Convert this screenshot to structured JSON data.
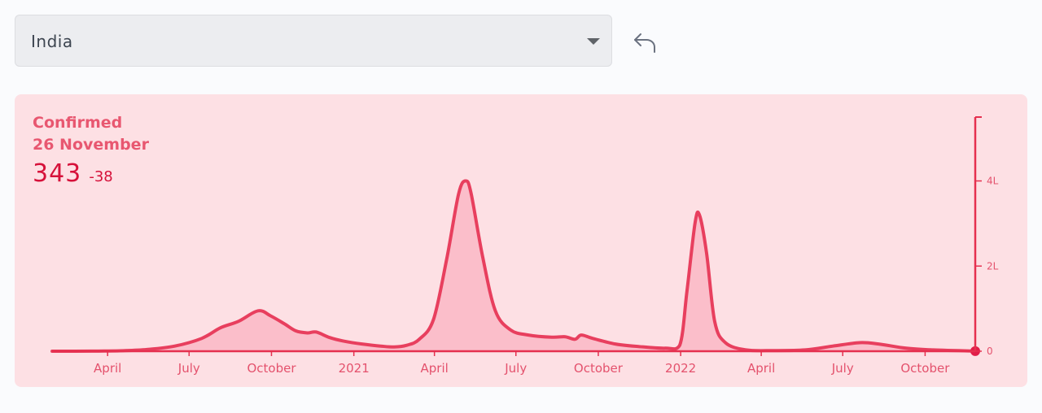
{
  "region_select": {
    "value": "India",
    "icon": "caret-down-icon"
  },
  "back_button": {
    "icon": "undo-arrow-icon"
  },
  "stats": {
    "label": "Confirmed",
    "date": "26 November",
    "value": "343",
    "delta": "-38"
  },
  "colors": {
    "card_bg": "#fde0e4",
    "line": "#e83f5e",
    "fill": "#f9b3c1",
    "axis": "#e5304f"
  },
  "chart_data": {
    "type": "area",
    "title": "",
    "xlabel": "",
    "ylabel": "",
    "x_range": [
      "2020-01-30",
      "2022-11-26"
    ],
    "ylim": [
      0,
      550000
    ],
    "yticks": [
      {
        "value": 0,
        "label": "0"
      },
      {
        "value": 200000,
        "label": "2L"
      },
      {
        "value": 400000,
        "label": "4L"
      }
    ],
    "xticks": [
      {
        "date": "2020-04-01",
        "label": "April"
      },
      {
        "date": "2020-07-01",
        "label": "July"
      },
      {
        "date": "2020-10-01",
        "label": "October"
      },
      {
        "date": "2021-01-01",
        "label": "2021"
      },
      {
        "date": "2021-04-01",
        "label": "April"
      },
      {
        "date": "2021-07-01",
        "label": "July"
      },
      {
        "date": "2021-10-01",
        "label": "October"
      },
      {
        "date": "2022-01-01",
        "label": "2022"
      },
      {
        "date": "2022-04-01",
        "label": "April"
      },
      {
        "date": "2022-07-01",
        "label": "July"
      },
      {
        "date": "2022-10-01",
        "label": "October"
      }
    ],
    "grid": false,
    "legend": "none",
    "series": [
      {
        "points": [
          [
            "2020-01-30",
            0
          ],
          [
            "2020-03-15",
            200
          ],
          [
            "2020-04-15",
            1000
          ],
          [
            "2020-05-15",
            4000
          ],
          [
            "2020-06-15",
            12000
          ],
          [
            "2020-07-15",
            30000
          ],
          [
            "2020-08-05",
            55000
          ],
          [
            "2020-08-25",
            70000
          ],
          [
            "2020-09-16",
            95000
          ],
          [
            "2020-09-30",
            83000
          ],
          [
            "2020-10-15",
            65000
          ],
          [
            "2020-10-28",
            48000
          ],
          [
            "2020-11-10",
            43000
          ],
          [
            "2020-11-20",
            45000
          ],
          [
            "2020-12-05",
            32000
          ],
          [
            "2020-12-20",
            24000
          ],
          [
            "2021-01-10",
            17000
          ],
          [
            "2021-01-31",
            12000
          ],
          [
            "2021-02-15",
            10000
          ],
          [
            "2021-03-01",
            14000
          ],
          [
            "2021-03-15",
            28000
          ],
          [
            "2021-03-31",
            75000
          ],
          [
            "2021-04-15",
            220000
          ],
          [
            "2021-04-28",
            370000
          ],
          [
            "2021-05-06",
            400000
          ],
          [
            "2021-05-12",
            370000
          ],
          [
            "2021-05-25",
            220000
          ],
          [
            "2021-06-08",
            95000
          ],
          [
            "2021-06-25",
            50000
          ],
          [
            "2021-07-15",
            38000
          ],
          [
            "2021-08-10",
            33000
          ],
          [
            "2021-08-25",
            34000
          ],
          [
            "2021-09-05",
            28000
          ],
          [
            "2021-09-12",
            38000
          ],
          [
            "2021-09-25",
            30000
          ],
          [
            "2021-10-20",
            17000
          ],
          [
            "2021-11-15",
            11000
          ],
          [
            "2021-12-15",
            7000
          ],
          [
            "2021-12-31",
            14000
          ],
          [
            "2022-01-08",
            140000
          ],
          [
            "2022-01-17",
            300000
          ],
          [
            "2022-01-22",
            320000
          ],
          [
            "2022-01-30",
            230000
          ],
          [
            "2022-02-08",
            70000
          ],
          [
            "2022-02-20",
            20000
          ],
          [
            "2022-03-15",
            3000
          ],
          [
            "2022-04-15",
            1500
          ],
          [
            "2022-05-20",
            3000
          ],
          [
            "2022-06-20",
            12000
          ],
          [
            "2022-07-20",
            20000
          ],
          [
            "2022-08-10",
            17000
          ],
          [
            "2022-09-10",
            7000
          ],
          [
            "2022-10-10",
            3000
          ],
          [
            "2022-11-26",
            343
          ]
        ]
      }
    ]
  }
}
